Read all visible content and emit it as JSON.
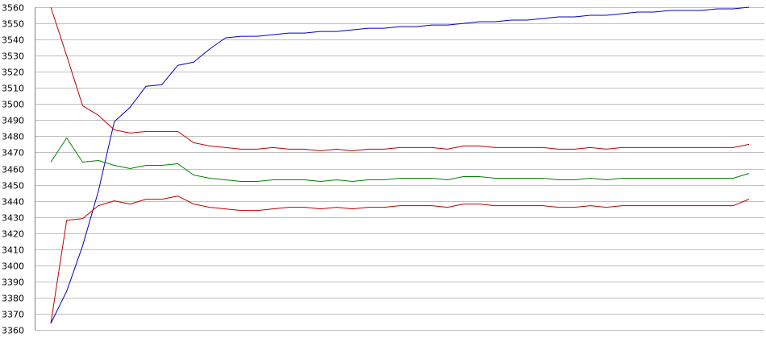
{
  "chart_data": {
    "type": "line",
    "title": "",
    "xlabel": "",
    "ylabel": "",
    "ylim": [
      3360,
      3560
    ],
    "yticks": [
      3360,
      3370,
      3380,
      3390,
      3400,
      3410,
      3420,
      3430,
      3440,
      3450,
      3460,
      3470,
      3480,
      3490,
      3500,
      3510,
      3520,
      3530,
      3540,
      3550,
      3560
    ],
    "grid": true,
    "legend": "none",
    "x": [
      1,
      2,
      3,
      4,
      5,
      6,
      7,
      8,
      9,
      10,
      11,
      12,
      13,
      14,
      15,
      16,
      17,
      18,
      19,
      20,
      21,
      22,
      23,
      24,
      25,
      26,
      27,
      28,
      29,
      30,
      31,
      32,
      33,
      34,
      35,
      36,
      37,
      38,
      39,
      40,
      41,
      42,
      43,
      44,
      45
    ],
    "series": [
      {
        "color": "#0000c0",
        "values": [
          3364,
          3384,
          3412,
          3446,
          3489,
          3498,
          3511,
          3512,
          3524,
          3526,
          3534,
          3541,
          3542,
          3542,
          3543,
          3544,
          3544,
          3545,
          3545,
          3546,
          3547,
          3547,
          3548,
          3548,
          3549,
          3549,
          3550,
          3551,
          3551,
          3552,
          3552,
          3553,
          3554,
          3554,
          3555,
          3555,
          3556,
          3557,
          3557,
          3558,
          3558,
          3558,
          3559,
          3559,
          3560
        ]
      },
      {
        "color": "#c00000",
        "values": [
          3560,
          3530,
          3499,
          3493,
          3484,
          3482,
          3483,
          3483,
          3483,
          3476,
          3474,
          3473,
          3472,
          3472,
          3473,
          3472,
          3472,
          3471,
          3472,
          3471,
          3472,
          3472,
          3473,
          3473,
          3473,
          3472,
          3474,
          3474,
          3473,
          3473,
          3473,
          3473,
          3472,
          3472,
          3473,
          3472,
          3473,
          3473,
          3473,
          3473,
          3473,
          3473,
          3473,
          3473,
          3475
        ]
      },
      {
        "color": "#008000",
        "values": [
          3464,
          3479,
          3464,
          3465,
          3462,
          3460,
          3462,
          3462,
          3463,
          3456,
          3454,
          3453,
          3452,
          3452,
          3453,
          3453,
          3453,
          3452,
          3453,
          3452,
          3453,
          3453,
          3454,
          3454,
          3454,
          3453,
          3455,
          3455,
          3454,
          3454,
          3454,
          3454,
          3453,
          3453,
          3454,
          3453,
          3454,
          3454,
          3454,
          3454,
          3454,
          3454,
          3454,
          3454,
          3457
        ]
      },
      {
        "color": "#c00000",
        "values": [
          3364,
          3428,
          3429,
          3437,
          3440,
          3438,
          3441,
          3441,
          3443,
          3438,
          3436,
          3435,
          3434,
          3434,
          3435,
          3436,
          3436,
          3435,
          3436,
          3435,
          3436,
          3436,
          3437,
          3437,
          3437,
          3436,
          3438,
          3438,
          3437,
          3437,
          3437,
          3437,
          3436,
          3436,
          3437,
          3436,
          3437,
          3437,
          3437,
          3437,
          3437,
          3437,
          3437,
          3437,
          3441
        ]
      }
    ]
  }
}
